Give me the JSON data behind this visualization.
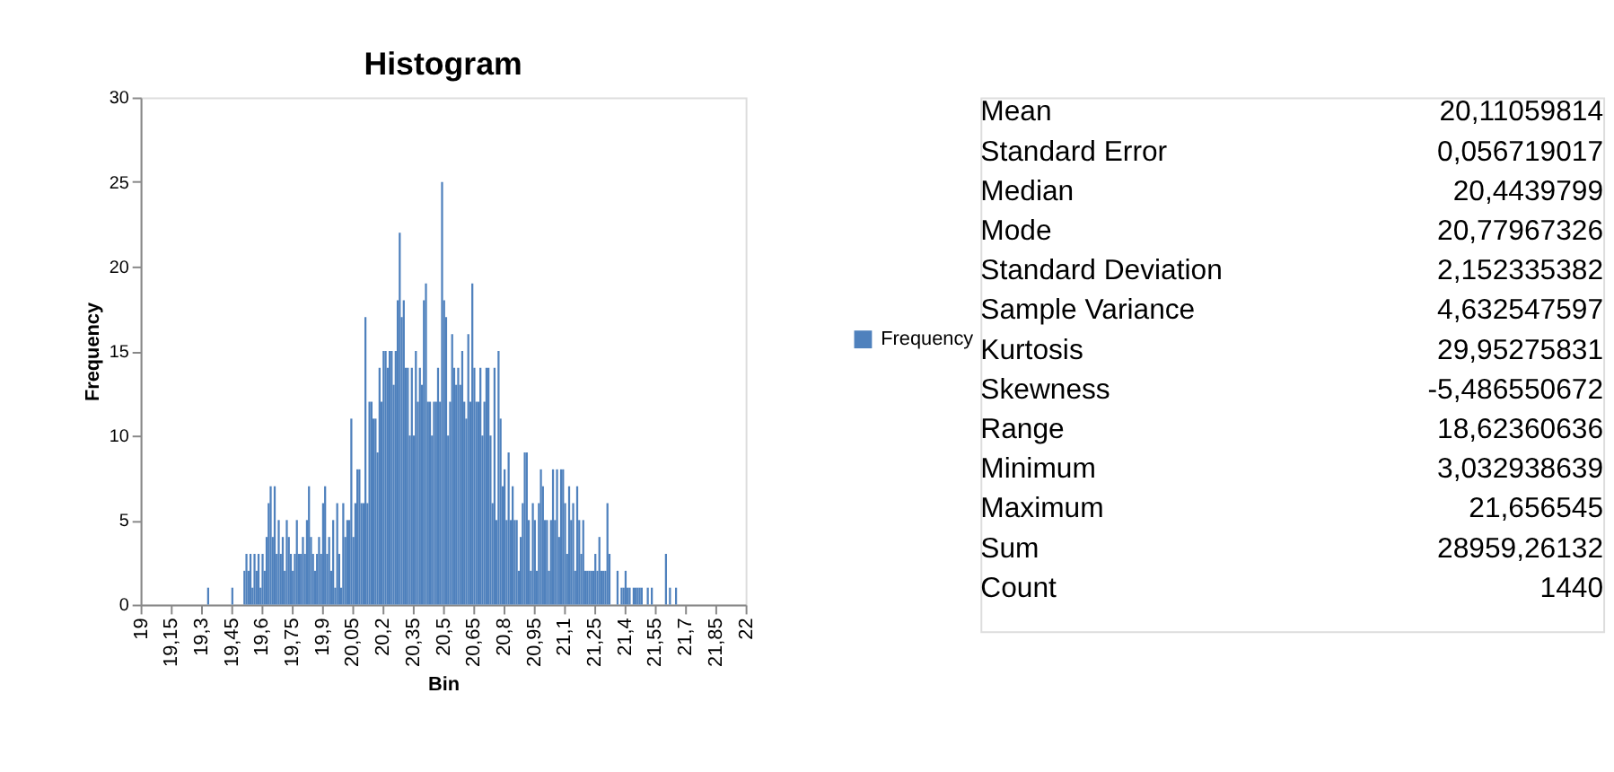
{
  "chart_data": [
    {
      "type": "histogram",
      "title": "Histogram",
      "xlabel": "Bin",
      "ylabel": "Frequency",
      "legend": "right",
      "grid": false,
      "xlim": [
        19,
        22
      ],
      "ylim": [
        0,
        30
      ],
      "yticks": [
        0,
        5,
        10,
        15,
        20,
        25,
        30
      ],
      "xticks": [
        19,
        {
          "value": 19.15,
          "label": "19,15"
        },
        {
          "value": 19.3,
          "label": "19,3"
        },
        {
          "value": 19.45,
          "label": "19,45"
        },
        {
          "value": 19.6,
          "label": "19,6"
        },
        {
          "value": 19.75,
          "label": "19,75"
        },
        {
          "value": 19.9,
          "label": "19,9"
        },
        {
          "value": 20.05,
          "label": "20,05"
        },
        {
          "value": 20.2,
          "label": "20,2"
        },
        {
          "value": 20.35,
          "label": "20,35"
        },
        {
          "value": 20.5,
          "label": "20,5"
        },
        {
          "value": 20.65,
          "label": "20,65"
        },
        {
          "value": 20.8,
          "label": "20,8"
        },
        {
          "value": 20.95,
          "label": "20,95"
        },
        {
          "value": 21.1,
          "label": "21,1"
        },
        {
          "value": 21.25,
          "label": "21,25"
        },
        {
          "value": 21.4,
          "label": "21,4"
        },
        {
          "value": 21.55,
          "label": "21,55"
        },
        {
          "value": 21.7,
          "label": "21,7"
        },
        {
          "value": 21.85,
          "label": "21,85"
        },
        22
      ],
      "bins": [
        19,
        19.01,
        19.02,
        19.03,
        19.04,
        19.05,
        19.06,
        19.07,
        19.08,
        19.09,
        19.1,
        19.11,
        19.12,
        19.13,
        19.14,
        19.15,
        19.16,
        19.17,
        19.18,
        19.19,
        19.2,
        19.21,
        19.22,
        19.23,
        19.24,
        19.25,
        19.26,
        19.27,
        19.28,
        19.29,
        19.3,
        19.31,
        19.32,
        19.33,
        19.34,
        19.35,
        19.36,
        19.37,
        19.38,
        19.39,
        19.4,
        19.41,
        19.42,
        19.43,
        19.44,
        19.45,
        19.46,
        19.47,
        19.48,
        19.49,
        19.5,
        19.51,
        19.52,
        19.53,
        19.54,
        19.55,
        19.56,
        19.57,
        19.58,
        19.59,
        19.6,
        19.61,
        19.62,
        19.63,
        19.64,
        19.65,
        19.66,
        19.67,
        19.68,
        19.69,
        19.7,
        19.71,
        19.72,
        19.73,
        19.74,
        19.75,
        19.76,
        19.77,
        19.78,
        19.79,
        19.8,
        19.81,
        19.82,
        19.83,
        19.84,
        19.85,
        19.86,
        19.87,
        19.88,
        19.89,
        19.9,
        19.91,
        19.92,
        19.93,
        19.94,
        19.95,
        19.96,
        19.97,
        19.98,
        19.99,
        20,
        20.01,
        20.02,
        20.03,
        20.04,
        20.05,
        20.06,
        20.07,
        20.08,
        20.09,
        20.1,
        20.11,
        20.12,
        20.13,
        20.14,
        20.15,
        20.16,
        20.17,
        20.18,
        20.19,
        20.2,
        20.21,
        20.22,
        20.23,
        20.24,
        20.25,
        20.26,
        20.27,
        20.28,
        20.29,
        20.3,
        20.31,
        20.32,
        20.33,
        20.34,
        20.35,
        20.36,
        20.37,
        20.38,
        20.39,
        20.4,
        20.41,
        20.42,
        20.43,
        20.44,
        20.45,
        20.46,
        20.47,
        20.48,
        20.49,
        20.5,
        20.51,
        20.52,
        20.53,
        20.54,
        20.55,
        20.56,
        20.57,
        20.58,
        20.59,
        20.6,
        20.61,
        20.62,
        20.63,
        20.64,
        20.65,
        20.66,
        20.67,
        20.68,
        20.69,
        20.7,
        20.71,
        20.72,
        20.73,
        20.74,
        20.75,
        20.76,
        20.77,
        20.78,
        20.79,
        20.8,
        20.81,
        20.82,
        20.83,
        20.84,
        20.85,
        20.86,
        20.87,
        20.88,
        20.89,
        20.9,
        20.91,
        20.92,
        20.93,
        20.94,
        20.95,
        20.96,
        20.97,
        20.98,
        20.99,
        21,
        21.01,
        21.02,
        21.03,
        21.04,
        21.05,
        21.06,
        21.07,
        21.08,
        21.09,
        21.1,
        21.11,
        21.12,
        21.13,
        21.14,
        21.15,
        21.16,
        21.17,
        21.18,
        21.19,
        21.2,
        21.21,
        21.22,
        21.23,
        21.24,
        21.25,
        21.26,
        21.27,
        21.28,
        21.29,
        21.3,
        21.31,
        21.32,
        21.33,
        21.34,
        21.35,
        21.36,
        21.37,
        21.38,
        21.39,
        21.4,
        21.41,
        21.42,
        21.43,
        21.44,
        21.45,
        21.46,
        21.47,
        21.48,
        21.49,
        21.5,
        21.51,
        21.52,
        21.53,
        21.54,
        21.55,
        21.56,
        21.57,
        21.58,
        21.59,
        21.6,
        21.61,
        21.62,
        21.63,
        21.64,
        21.65,
        21.66,
        21.67,
        21.68,
        21.69,
        21.7,
        21.71,
        21.72,
        21.73,
        21.74,
        21.75,
        21.76,
        21.77,
        21.78,
        21.79,
        21.8,
        21.81,
        21.82,
        21.83,
        21.84,
        21.85,
        21.86,
        21.87,
        21.88,
        21.89,
        21.9,
        21.91,
        21.92,
        21.93,
        21.94,
        21.95,
        21.96,
        21.97,
        21.98,
        21.99,
        22
      ],
      "series": [
        {
          "name": "Frequency",
          "color": "#4f81bd",
          "values": [
            0,
            0,
            0,
            0,
            0,
            0,
            0,
            0,
            0,
            0,
            0,
            0,
            0,
            0,
            0,
            0,
            0,
            0,
            0,
            0,
            0,
            0,
            0,
            0,
            0,
            0,
            0,
            0,
            0,
            0,
            0,
            0,
            0,
            1,
            0,
            0,
            0,
            0,
            0,
            0,
            0,
            0,
            0,
            0,
            0,
            1,
            0,
            0,
            0,
            0,
            0,
            2,
            3,
            2,
            3,
            1,
            3,
            2,
            3,
            1,
            3,
            2,
            4,
            6,
            7,
            4,
            7,
            3,
            5,
            3,
            4,
            2,
            5,
            4,
            3,
            2,
            3,
            5,
            3,
            3,
            4,
            3,
            5,
            7,
            4,
            3,
            2,
            3,
            4,
            3,
            6,
            7,
            3,
            4,
            2,
            5,
            1,
            6,
            3,
            1,
            6,
            4,
            5,
            5,
            11,
            4,
            6,
            8,
            8,
            6,
            6,
            17,
            6,
            12,
            12,
            11,
            11,
            9,
            14,
            12,
            15,
            15,
            14,
            15,
            15,
            13,
            15,
            18,
            22,
            17,
            18,
            14,
            14,
            10,
            14,
            10,
            15,
            12,
            14,
            13,
            18,
            19,
            12,
            12,
            10,
            12,
            12,
            14,
            12,
            25,
            18,
            17,
            10,
            12,
            16,
            14,
            13,
            14,
            13,
            15,
            12,
            11,
            16,
            12,
            19,
            14,
            12,
            12,
            14,
            10,
            12,
            14,
            14,
            10,
            6,
            14,
            5,
            15,
            11,
            7,
            8,
            5,
            9,
            5,
            7,
            5,
            5,
            2,
            4,
            6,
            9,
            9,
            5,
            2,
            6,
            5,
            2,
            6,
            8,
            7,
            5,
            5,
            2,
            5,
            8,
            5,
            8,
            4,
            8,
            8,
            6,
            3,
            7,
            5,
            6,
            2,
            7,
            5,
            3,
            5,
            2,
            2,
            2,
            2,
            2,
            3,
            2,
            4,
            2,
            2,
            2,
            6,
            3,
            0,
            0,
            0,
            2,
            0,
            1,
            1,
            2,
            1,
            1,
            0,
            1,
            1,
            1,
            1,
            1,
            0,
            0,
            1,
            0,
            1,
            0,
            0,
            0,
            0,
            0,
            0,
            3,
            0,
            1,
            0,
            0,
            1,
            0,
            0,
            0,
            0,
            0,
            0,
            0,
            0,
            0,
            0,
            0,
            0,
            0,
            0,
            0,
            0,
            0,
            0,
            0,
            0,
            0,
            0,
            0,
            0,
            0,
            0,
            0,
            0,
            0,
            0,
            0,
            0,
            0,
            0
          ]
        }
      ]
    },
    {
      "type": "other",
      "categories": [
        "Mean",
        "Standard Error",
        "Median",
        "Mode",
        "Standard Deviation",
        "Sample Variance",
        "Kurtosis",
        "Skewness",
        "Range",
        "Minimum",
        "Maximum",
        "Sum",
        "Count"
      ],
      "value_labels": [
        "20,11059814",
        "0,056719017",
        "20,4439799",
        "20,77967326",
        "2,152335382",
        "4,632547597",
        "29,95275831",
        "-5,486550672",
        "18,62360636",
        "3,032938639",
        "21,656545",
        "28959,26132",
        "1440"
      ]
    }
  ]
}
